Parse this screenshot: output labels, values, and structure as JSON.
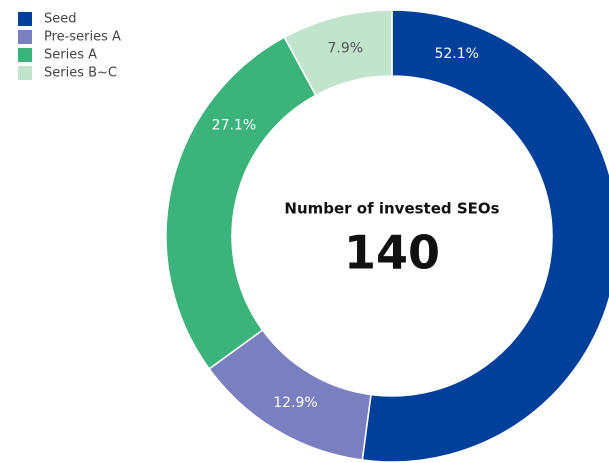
{
  "chart_data": {
    "type": "pie",
    "categories": [
      "Seed",
      "Pre-series A",
      "Series A",
      "Series B~C"
    ],
    "values": [
      52.1,
      12.9,
      27.1,
      7.9
    ],
    "value_labels": [
      "52.1%",
      "12.9%",
      "27.1%",
      "7.9%"
    ],
    "colors": [
      "#003f9a",
      "#7a7fbf",
      "#3bb37a",
      "#c2e3cc"
    ],
    "center_title": "Number of invested SEOs",
    "center_value": 140,
    "legend": "top-left"
  }
}
